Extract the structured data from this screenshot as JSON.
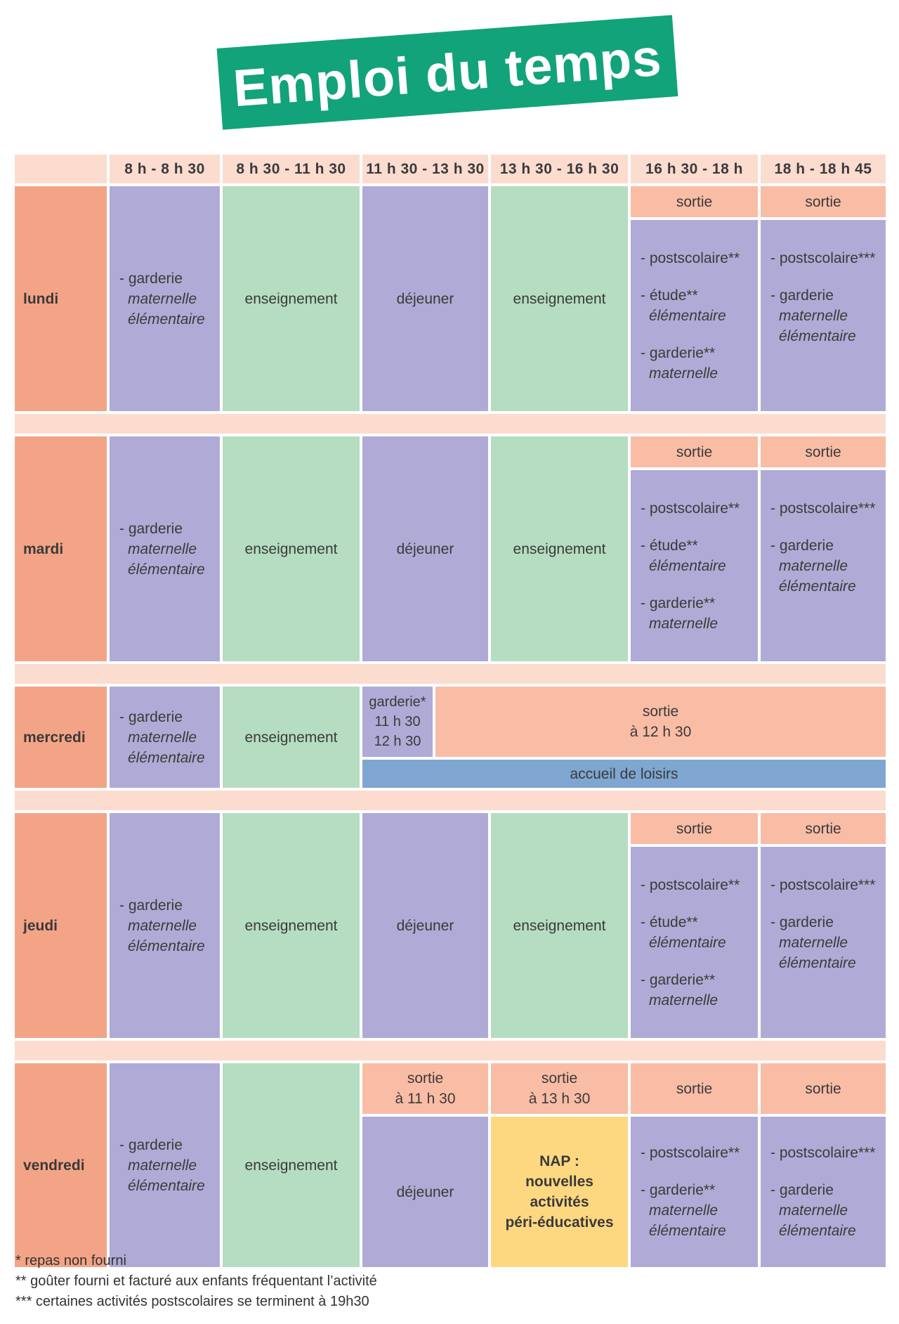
{
  "title": "Emploi du temps",
  "header": {
    "columns": [
      "8 h - 8 h 30",
      "8 h 30 - 11 h 30",
      "11 h 30 - 13 h 30",
      "13 h 30 - 16 h 30",
      "16 h 30 - 18 h",
      "18 h - 18 h 45"
    ]
  },
  "labels": {
    "sortie": "sortie",
    "enseignement": "enseignement",
    "dejeuner": "déjeuner",
    "garderie": "- garderie",
    "maternelle": "maternelle",
    "elementaire": "élémentaire",
    "postscolaire2": "- postscolaire**",
    "postscolaire3": "- postscolaire***",
    "etude2": "- étude**",
    "garderie2": "- garderie**"
  },
  "days": {
    "lundi": "lundi",
    "mardi": "mardi",
    "mercredi": "mercredi",
    "jeudi": "jeudi",
    "vendredi": "vendredi"
  },
  "mercredi": {
    "garderie_label": "garderie*",
    "garderie_t1": "11 h 30",
    "garderie_t2": "12 h 30",
    "sortie_l1": "sortie",
    "sortie_l2": "à 12 h 30",
    "accueil": "accueil de loisirs"
  },
  "vendredi": {
    "sortie1_l1": "sortie",
    "sortie1_l2": "à 11 h 30",
    "sortie2_l1": "sortie",
    "sortie2_l2": "à 13 h 30",
    "nap_l1": "NAP :",
    "nap_l2": "nouvelles",
    "nap_l3": "activités",
    "nap_l4": "péri-éducatives"
  },
  "notes": [
    "* repas non fourni",
    "** goûter fourni et facturé aux enfants fréquentant l’activité",
    "*** certaines activités postscolaires se terminent à 19h30"
  ],
  "colors": {
    "title_bg": "#12a37a",
    "header_bg": "#fcdccf",
    "day_bg": "#f4a486",
    "lavender": "#afabd6",
    "green": "#b5ddc1",
    "peach": "#f9bca5",
    "blue": "#7ea6d1",
    "yellow": "#fed881"
  }
}
